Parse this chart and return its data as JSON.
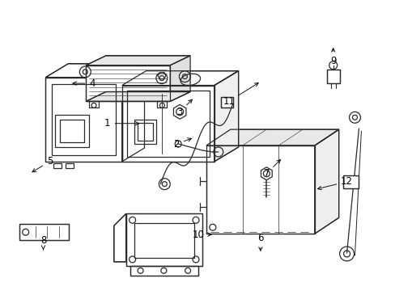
{
  "bg_color": "#ffffff",
  "line_color": "#2a2a2a",
  "lw": 0.9,
  "fig_width": 4.89,
  "fig_height": 3.6,
  "dpi": 100,
  "font_size": 8.5
}
